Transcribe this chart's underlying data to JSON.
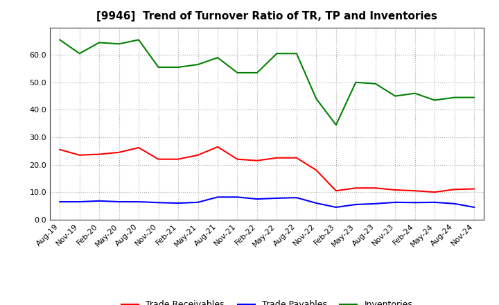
{
  "title": "[9946]  Trend of Turnover Ratio of TR, TP and Inventories",
  "x_labels": [
    "Aug-19",
    "Nov-19",
    "Feb-20",
    "May-20",
    "Aug-20",
    "Nov-20",
    "Feb-21",
    "May-21",
    "Aug-21",
    "Nov-21",
    "Feb-22",
    "May-22",
    "Aug-22",
    "Nov-22",
    "Feb-23",
    "May-23",
    "Aug-23",
    "Nov-23",
    "Feb-24",
    "May-24",
    "Aug-24",
    "Nov-24"
  ],
  "trade_receivables": [
    25.5,
    23.5,
    23.8,
    24.5,
    26.2,
    22.0,
    22.0,
    23.5,
    26.5,
    22.0,
    21.5,
    22.5,
    22.5,
    18.0,
    10.5,
    11.5,
    11.5,
    10.8,
    10.5,
    10.0,
    11.0,
    11.2
  ],
  "trade_payables": [
    6.5,
    6.5,
    6.8,
    6.5,
    6.5,
    6.2,
    6.0,
    6.3,
    8.2,
    8.2,
    7.5,
    7.8,
    8.0,
    6.0,
    4.5,
    5.5,
    5.8,
    6.3,
    6.2,
    6.3,
    5.8,
    4.5
  ],
  "inventories": [
    65.5,
    60.5,
    64.5,
    64.0,
    65.5,
    55.5,
    55.5,
    56.5,
    59.0,
    53.5,
    53.5,
    60.5,
    60.5,
    44.0,
    34.5,
    50.0,
    49.5,
    45.0,
    46.0,
    43.5,
    44.5,
    44.5
  ],
  "tr_color": "#ff0000",
  "tp_color": "#0000ff",
  "inv_color": "#008000",
  "ylim": [
    0.0,
    70.0
  ],
  "yticks": [
    0.0,
    10.0,
    20.0,
    30.0,
    40.0,
    50.0,
    60.0
  ],
  "background_color": "#ffffff",
  "plot_bg_color": "#ffffff",
  "grid_color": "#aaaaaa",
  "title_fontsize": 11,
  "tick_fontsize": 8,
  "legend_labels": [
    "Trade Receivables",
    "Trade Payables",
    "Inventories"
  ]
}
